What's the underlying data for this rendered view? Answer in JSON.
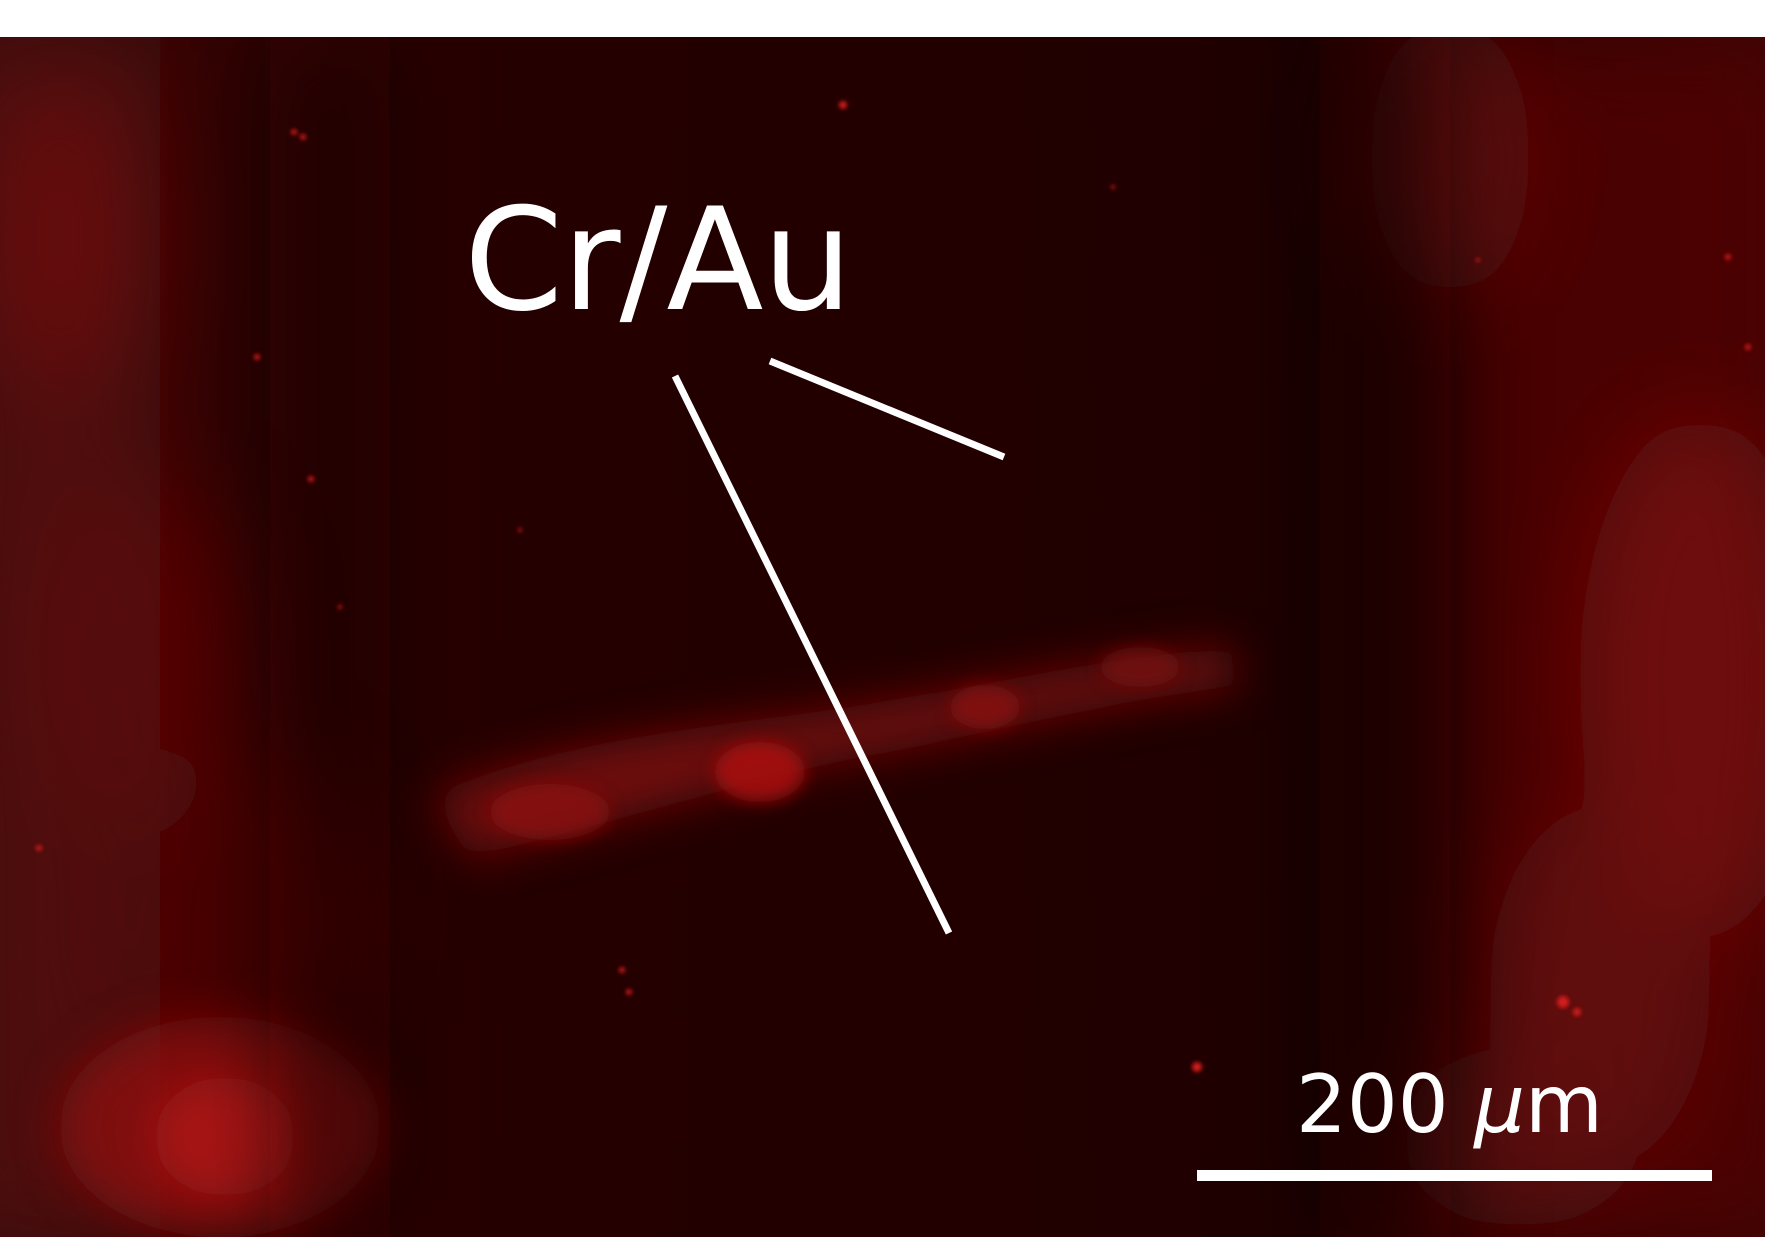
{
  "annotation": {
    "label": "Cr/Au"
  },
  "scale_bar": {
    "value": "200",
    "unit_prefix": "μ",
    "unit_suffix": "m"
  },
  "colors": {
    "background": "#220000",
    "fluorescence": "#c41010",
    "annotation": "#ffffff"
  }
}
